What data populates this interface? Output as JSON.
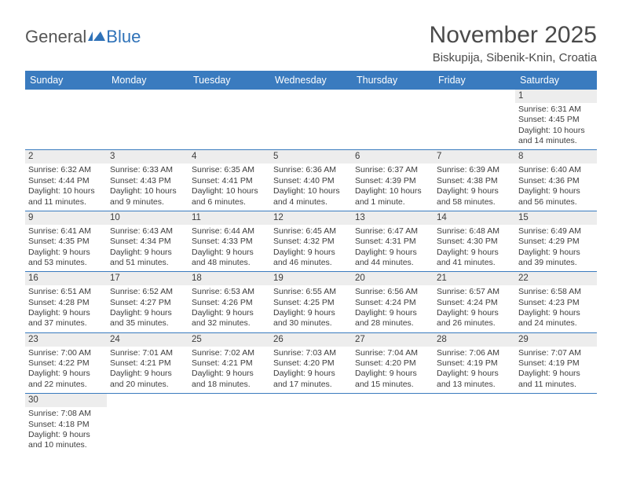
{
  "logo": {
    "text1": "General",
    "text2": "Blue"
  },
  "title": "November 2025",
  "location": "Biskupija, Sibenik-Knin, Croatia",
  "colors": {
    "header_bg": "#3a7bbf",
    "header_text": "#ffffff",
    "daynum_bg": "#ededed",
    "row_border": "#3a7bbf",
    "text": "#3d3d3d",
    "page_bg": "#ffffff"
  },
  "weekdays": [
    "Sunday",
    "Monday",
    "Tuesday",
    "Wednesday",
    "Thursday",
    "Friday",
    "Saturday"
  ],
  "weeks": [
    [
      {
        "n": "",
        "sr": "",
        "ss": "",
        "dl": ""
      },
      {
        "n": "",
        "sr": "",
        "ss": "",
        "dl": ""
      },
      {
        "n": "",
        "sr": "",
        "ss": "",
        "dl": ""
      },
      {
        "n": "",
        "sr": "",
        "ss": "",
        "dl": ""
      },
      {
        "n": "",
        "sr": "",
        "ss": "",
        "dl": ""
      },
      {
        "n": "",
        "sr": "",
        "ss": "",
        "dl": ""
      },
      {
        "n": "1",
        "sr": "Sunrise: 6:31 AM",
        "ss": "Sunset: 4:45 PM",
        "dl": "Daylight: 10 hours and 14 minutes."
      }
    ],
    [
      {
        "n": "2",
        "sr": "Sunrise: 6:32 AM",
        "ss": "Sunset: 4:44 PM",
        "dl": "Daylight: 10 hours and 11 minutes."
      },
      {
        "n": "3",
        "sr": "Sunrise: 6:33 AM",
        "ss": "Sunset: 4:43 PM",
        "dl": "Daylight: 10 hours and 9 minutes."
      },
      {
        "n": "4",
        "sr": "Sunrise: 6:35 AM",
        "ss": "Sunset: 4:41 PM",
        "dl": "Daylight: 10 hours and 6 minutes."
      },
      {
        "n": "5",
        "sr": "Sunrise: 6:36 AM",
        "ss": "Sunset: 4:40 PM",
        "dl": "Daylight: 10 hours and 4 minutes."
      },
      {
        "n": "6",
        "sr": "Sunrise: 6:37 AM",
        "ss": "Sunset: 4:39 PM",
        "dl": "Daylight: 10 hours and 1 minute."
      },
      {
        "n": "7",
        "sr": "Sunrise: 6:39 AM",
        "ss": "Sunset: 4:38 PM",
        "dl": "Daylight: 9 hours and 58 minutes."
      },
      {
        "n": "8",
        "sr": "Sunrise: 6:40 AM",
        "ss": "Sunset: 4:36 PM",
        "dl": "Daylight: 9 hours and 56 minutes."
      }
    ],
    [
      {
        "n": "9",
        "sr": "Sunrise: 6:41 AM",
        "ss": "Sunset: 4:35 PM",
        "dl": "Daylight: 9 hours and 53 minutes."
      },
      {
        "n": "10",
        "sr": "Sunrise: 6:43 AM",
        "ss": "Sunset: 4:34 PM",
        "dl": "Daylight: 9 hours and 51 minutes."
      },
      {
        "n": "11",
        "sr": "Sunrise: 6:44 AM",
        "ss": "Sunset: 4:33 PM",
        "dl": "Daylight: 9 hours and 48 minutes."
      },
      {
        "n": "12",
        "sr": "Sunrise: 6:45 AM",
        "ss": "Sunset: 4:32 PM",
        "dl": "Daylight: 9 hours and 46 minutes."
      },
      {
        "n": "13",
        "sr": "Sunrise: 6:47 AM",
        "ss": "Sunset: 4:31 PM",
        "dl": "Daylight: 9 hours and 44 minutes."
      },
      {
        "n": "14",
        "sr": "Sunrise: 6:48 AM",
        "ss": "Sunset: 4:30 PM",
        "dl": "Daylight: 9 hours and 41 minutes."
      },
      {
        "n": "15",
        "sr": "Sunrise: 6:49 AM",
        "ss": "Sunset: 4:29 PM",
        "dl": "Daylight: 9 hours and 39 minutes."
      }
    ],
    [
      {
        "n": "16",
        "sr": "Sunrise: 6:51 AM",
        "ss": "Sunset: 4:28 PM",
        "dl": "Daylight: 9 hours and 37 minutes."
      },
      {
        "n": "17",
        "sr": "Sunrise: 6:52 AM",
        "ss": "Sunset: 4:27 PM",
        "dl": "Daylight: 9 hours and 35 minutes."
      },
      {
        "n": "18",
        "sr": "Sunrise: 6:53 AM",
        "ss": "Sunset: 4:26 PM",
        "dl": "Daylight: 9 hours and 32 minutes."
      },
      {
        "n": "19",
        "sr": "Sunrise: 6:55 AM",
        "ss": "Sunset: 4:25 PM",
        "dl": "Daylight: 9 hours and 30 minutes."
      },
      {
        "n": "20",
        "sr": "Sunrise: 6:56 AM",
        "ss": "Sunset: 4:24 PM",
        "dl": "Daylight: 9 hours and 28 minutes."
      },
      {
        "n": "21",
        "sr": "Sunrise: 6:57 AM",
        "ss": "Sunset: 4:24 PM",
        "dl": "Daylight: 9 hours and 26 minutes."
      },
      {
        "n": "22",
        "sr": "Sunrise: 6:58 AM",
        "ss": "Sunset: 4:23 PM",
        "dl": "Daylight: 9 hours and 24 minutes."
      }
    ],
    [
      {
        "n": "23",
        "sr": "Sunrise: 7:00 AM",
        "ss": "Sunset: 4:22 PM",
        "dl": "Daylight: 9 hours and 22 minutes."
      },
      {
        "n": "24",
        "sr": "Sunrise: 7:01 AM",
        "ss": "Sunset: 4:21 PM",
        "dl": "Daylight: 9 hours and 20 minutes."
      },
      {
        "n": "25",
        "sr": "Sunrise: 7:02 AM",
        "ss": "Sunset: 4:21 PM",
        "dl": "Daylight: 9 hours and 18 minutes."
      },
      {
        "n": "26",
        "sr": "Sunrise: 7:03 AM",
        "ss": "Sunset: 4:20 PM",
        "dl": "Daylight: 9 hours and 17 minutes."
      },
      {
        "n": "27",
        "sr": "Sunrise: 7:04 AM",
        "ss": "Sunset: 4:20 PM",
        "dl": "Daylight: 9 hours and 15 minutes."
      },
      {
        "n": "28",
        "sr": "Sunrise: 7:06 AM",
        "ss": "Sunset: 4:19 PM",
        "dl": "Daylight: 9 hours and 13 minutes."
      },
      {
        "n": "29",
        "sr": "Sunrise: 7:07 AM",
        "ss": "Sunset: 4:19 PM",
        "dl": "Daylight: 9 hours and 11 minutes."
      }
    ],
    [
      {
        "n": "30",
        "sr": "Sunrise: 7:08 AM",
        "ss": "Sunset: 4:18 PM",
        "dl": "Daylight: 9 hours and 10 minutes."
      },
      {
        "n": "",
        "sr": "",
        "ss": "",
        "dl": ""
      },
      {
        "n": "",
        "sr": "",
        "ss": "",
        "dl": ""
      },
      {
        "n": "",
        "sr": "",
        "ss": "",
        "dl": ""
      },
      {
        "n": "",
        "sr": "",
        "ss": "",
        "dl": ""
      },
      {
        "n": "",
        "sr": "",
        "ss": "",
        "dl": ""
      },
      {
        "n": "",
        "sr": "",
        "ss": "",
        "dl": ""
      }
    ]
  ]
}
